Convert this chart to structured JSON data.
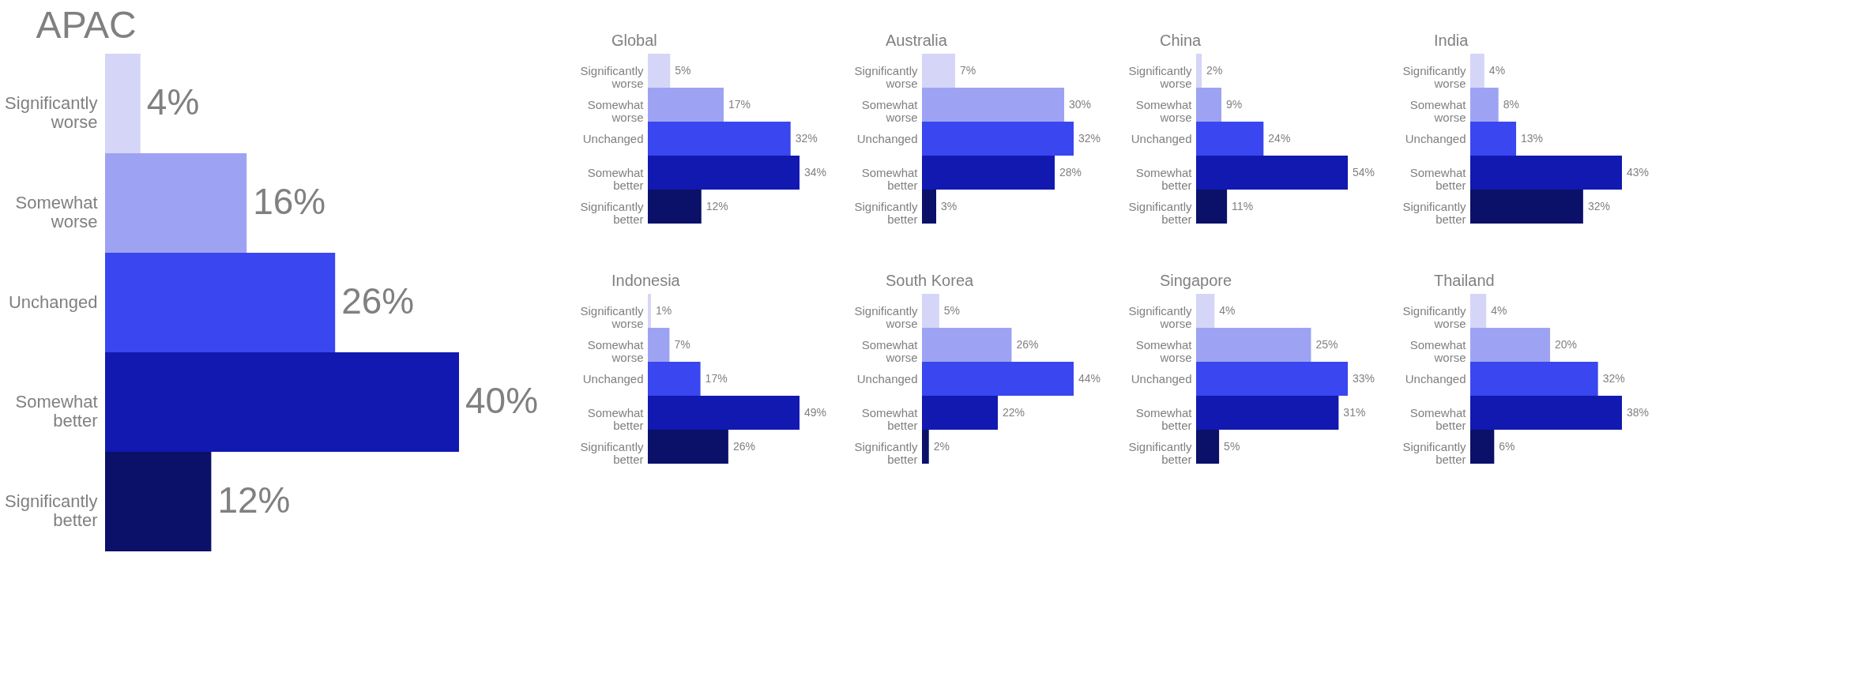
{
  "chart_data": [
    {
      "type": "bar",
      "orientation": "horizontal",
      "title": "APAC",
      "tick_labels": "y",
      "categories": [
        "Significantly worse",
        "Somewhat worse",
        "Unchanged",
        "Somewhat better",
        "Significantly better"
      ],
      "values": [
        4,
        16,
        26,
        40,
        12
      ],
      "value_labels": [
        "4%",
        "16%",
        "26%",
        "40%",
        "12%"
      ],
      "colors": [
        "#d5d5f8",
        "#9da3f2",
        "#3a46f0",
        "#1119b0",
        "#0b1068"
      ]
    },
    {
      "type": "bar",
      "orientation": "horizontal",
      "title": "Global",
      "tick_labels": "y",
      "categories": [
        "Significantly worse",
        "Somewhat worse",
        "Unchanged",
        "Somewhat better",
        "Significantly better"
      ],
      "values": [
        5,
        17,
        32,
        34,
        12
      ],
      "value_labels": [
        "5%",
        "17%",
        "32%",
        "34%",
        "12%"
      ],
      "colors": [
        "#d5d5f8",
        "#9da3f2",
        "#3a46f0",
        "#1119b0",
        "#0b1068"
      ]
    },
    {
      "type": "bar",
      "orientation": "horizontal",
      "title": "Australia",
      "tick_labels": "y",
      "categories": [
        "Significantly worse",
        "Somewhat worse",
        "Unchanged",
        "Somewhat better",
        "Significantly better"
      ],
      "values": [
        7,
        30,
        32,
        28,
        3
      ],
      "value_labels": [
        "7%",
        "30%",
        "32%",
        "28%",
        "3%"
      ],
      "colors": [
        "#d5d5f8",
        "#9da3f2",
        "#3a46f0",
        "#1119b0",
        "#0b1068"
      ]
    },
    {
      "type": "bar",
      "orientation": "horizontal",
      "title": "China",
      "tick_labels": "y",
      "categories": [
        "Significantly worse",
        "Somewhat worse",
        "Unchanged",
        "Somewhat better",
        "Significantly better"
      ],
      "values": [
        2,
        9,
        24,
        54,
        11
      ],
      "value_labels": [
        "2%",
        "9%",
        "24%",
        "54%",
        "11%"
      ],
      "colors": [
        "#d5d5f8",
        "#9da3f2",
        "#3a46f0",
        "#1119b0",
        "#0b1068"
      ]
    },
    {
      "type": "bar",
      "orientation": "horizontal",
      "title": "India",
      "tick_labels": "y",
      "categories": [
        "Significantly worse",
        "Somewhat worse",
        "Unchanged",
        "Somewhat better",
        "Significantly better"
      ],
      "values": [
        4,
        8,
        13,
        43,
        32
      ],
      "value_labels": [
        "4%",
        "8%",
        "13%",
        "43%",
        "32%"
      ],
      "colors": [
        "#d5d5f8",
        "#9da3f2",
        "#3a46f0",
        "#1119b0",
        "#0b1068"
      ]
    },
    {
      "type": "bar",
      "orientation": "horizontal",
      "title": "Indonesia",
      "tick_labels": "y",
      "categories": [
        "Significantly worse",
        "Somewhat worse",
        "Unchanged",
        "Somewhat better",
        "Significantly better"
      ],
      "values": [
        1,
        7,
        17,
        49,
        26
      ],
      "value_labels": [
        "1%",
        "7%",
        "17%",
        "49%",
        "26%"
      ],
      "colors": [
        "#d5d5f8",
        "#9da3f2",
        "#3a46f0",
        "#1119b0",
        "#0b1068"
      ]
    },
    {
      "type": "bar",
      "orientation": "horizontal",
      "title": "South Korea",
      "tick_labels": "y",
      "categories": [
        "Significantly worse",
        "Somewhat worse",
        "Unchanged",
        "Somewhat better",
        "Significantly better"
      ],
      "values": [
        5,
        26,
        44,
        22,
        2
      ],
      "value_labels": [
        "5%",
        "26%",
        "44%",
        "22%",
        "2%"
      ],
      "colors": [
        "#d5d5f8",
        "#9da3f2",
        "#3a46f0",
        "#1119b0",
        "#0b1068"
      ]
    },
    {
      "type": "bar",
      "orientation": "horizontal",
      "title": "Singapore",
      "tick_labels": "y",
      "categories": [
        "Significantly worse",
        "Somewhat worse",
        "Unchanged",
        "Somewhat better",
        "Significantly better"
      ],
      "values": [
        4,
        25,
        33,
        31,
        5
      ],
      "value_labels": [
        "4%",
        "25%",
        "33%",
        "31%",
        "5%"
      ],
      "colors": [
        "#d5d5f8",
        "#9da3f2",
        "#3a46f0",
        "#1119b0",
        "#0b1068"
      ]
    },
    {
      "type": "bar",
      "orientation": "horizontal",
      "title": "Thailand",
      "tick_labels": "y",
      "categories": [
        "Significantly worse",
        "Somewhat worse",
        "Unchanged",
        "Somewhat better",
        "Significantly better"
      ],
      "values": [
        4,
        20,
        32,
        38,
        6
      ],
      "value_labels": [
        "4%",
        "20%",
        "32%",
        "38%",
        "6%"
      ],
      "colors": [
        "#d5d5f8",
        "#9da3f2",
        "#3a46f0",
        "#1119b0",
        "#0b1068"
      ]
    }
  ]
}
